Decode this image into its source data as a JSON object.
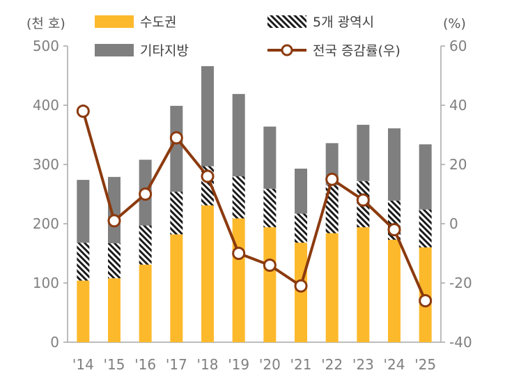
{
  "chart_data": {
    "type": "bar",
    "stacked": true,
    "categories": [
      "'14",
      "'15",
      "'16",
      "'17",
      "'18",
      "'19",
      "'20",
      "'21",
      "'22",
      "'23",
      "'24",
      "'25"
    ],
    "left_axis": {
      "unit": "(천 호)",
      "ylim": [
        0,
        500
      ],
      "ticks": [
        0,
        100,
        200,
        300,
        400,
        500
      ]
    },
    "right_axis": {
      "unit": "(%)",
      "ylim": [
        -40,
        60
      ],
      "ticks": [
        -40,
        -20,
        0,
        20,
        40,
        60
      ]
    },
    "series": [
      {
        "name": "수도권",
        "kind": "bar",
        "color": "#fdb92c",
        "values": [
          104,
          108,
          131,
          182,
          231,
          209,
          194,
          168,
          184,
          194,
          173,
          160
        ]
      },
      {
        "name": "5개 광역시",
        "kind": "bar",
        "pattern": "hatch",
        "values": [
          64,
          59,
          66,
          72,
          66,
          71,
          65,
          49,
          81,
          78,
          66,
          64
        ]
      },
      {
        "name": "기타지방",
        "kind": "bar",
        "color": "#7f7f7f",
        "values": [
          106,
          112,
          111,
          145,
          169,
          139,
          105,
          76,
          71,
          95,
          122,
          110
        ]
      },
      {
        "name": "전국 증감률(우)",
        "kind": "line",
        "axis": "right",
        "color": "#8b3a0e",
        "values": [
          38,
          1,
          10,
          29,
          16,
          -10,
          -14,
          -21,
          15,
          8,
          -2,
          -26
        ]
      }
    ],
    "grid": false,
    "legend": "top"
  }
}
